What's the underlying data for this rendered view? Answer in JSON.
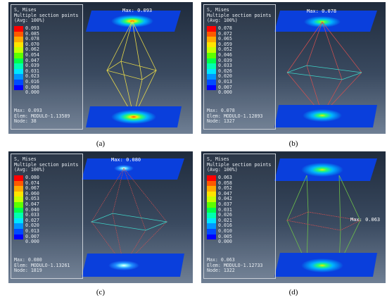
{
  "legend_title": "S, Mises",
  "legend_line2": "Multiple section points",
  "legend_line3": "(Avg: 100%)",
  "colors": [
    "#ff0000",
    "#ff5a00",
    "#ffaa00",
    "#ffe400",
    "#c7ff00",
    "#5cff00",
    "#00ff4a",
    "#00ffb0",
    "#00e6ff",
    "#0096ff",
    "#004bff",
    "#0000ff"
  ],
  "panels": [
    {
      "caption": "(a)",
      "max_label": "Max: 0.093",
      "scale": [
        "0.093",
        "0.085",
        "0.078",
        "0.070",
        "0.062",
        "0.054",
        "0.047",
        "0.039",
        "0.031",
        "0.023",
        "0.016",
        "0.008",
        "0.000"
      ],
      "info_max": "Max: 0.093",
      "info_elem": "Elem: MODULO-1.13589",
      "info_node": "Node: 38",
      "cable_color": "#e6d84a"
    },
    {
      "caption": "(b)",
      "max_label": "Max: 0.078",
      "scale": [
        "0.078",
        "0.072",
        "0.065",
        "0.059",
        "0.052",
        "0.046",
        "0.039",
        "0.033",
        "0.026",
        "0.020",
        "0.013",
        "0.007",
        "0.000"
      ],
      "info_max": "Max: 0.078",
      "info_elem": "Elem: MODULO-1.12893",
      "info_node": "Node: 1327",
      "cable_color": "#d65050"
    },
    {
      "caption": "(c)",
      "max_label": "Max: 0.080",
      "scale": [
        "0.080",
        "0.074",
        "0.067",
        "0.060",
        "0.053",
        "0.047",
        "0.040",
        "0.033",
        "0.027",
        "0.020",
        "0.013",
        "0.007",
        "0.000"
      ],
      "info_max": "Max: 0.080",
      "info_elem": "Elem: MODULO-1.13261",
      "info_node": "Node: 1819",
      "cable_color": "#d65050"
    },
    {
      "caption": "(d)",
      "max_label": "Max: 0.063",
      "scale": [
        "0.063",
        "0.058",
        "0.052",
        "0.047",
        "0.042",
        "0.037",
        "0.031",
        "0.026",
        "0.021",
        "0.016",
        "0.010",
        "0.005",
        "0.000"
      ],
      "info_max": "Max: 0.063",
      "info_elem": "Elem: MODULO-1.12733",
      "info_node": "Node: 1322",
      "cable_color": "#6cc04a"
    }
  ]
}
